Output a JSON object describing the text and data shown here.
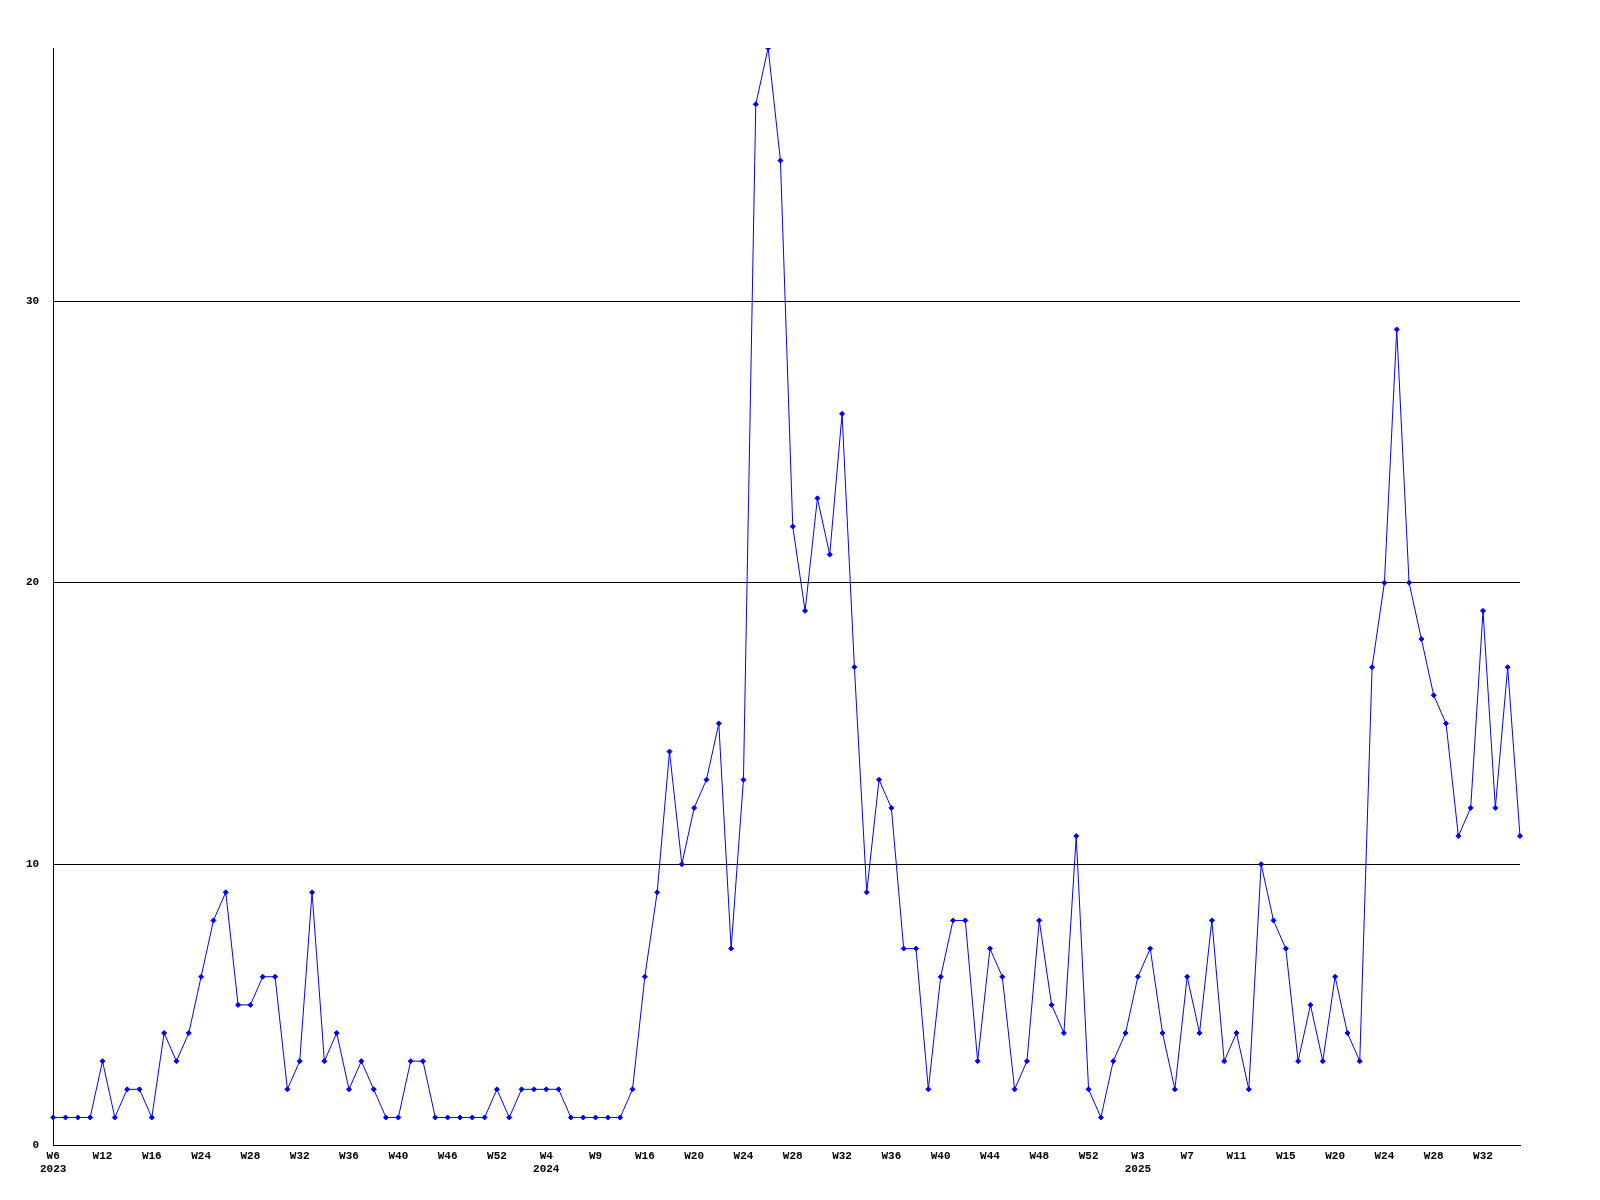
{
  "chart_data": {
    "type": "line",
    "categories": [
      "W6\n2023",
      null,
      null,
      null,
      "W12",
      null,
      null,
      null,
      "W16",
      null,
      null,
      null,
      "W24",
      null,
      null,
      null,
      "W28",
      null,
      null,
      null,
      "W32",
      null,
      null,
      null,
      "W36",
      null,
      null,
      null,
      "W40",
      null,
      null,
      null,
      "W46",
      null,
      null,
      null,
      "W52",
      null,
      null,
      null,
      "W4\n2024",
      null,
      null,
      null,
      "W9",
      null,
      null,
      null,
      "W16",
      null,
      null,
      null,
      "W20",
      null,
      null,
      null,
      "W24",
      null,
      null,
      null,
      "W28",
      null,
      null,
      null,
      "W32",
      null,
      null,
      null,
      "W36",
      null,
      null,
      null,
      "W40",
      null,
      null,
      null,
      "W44",
      null,
      null,
      null,
      "W48",
      null,
      null,
      null,
      "W52",
      null,
      null,
      null,
      "W3\n2025",
      null,
      null,
      null,
      "W7",
      null,
      null,
      null,
      "W11",
      null,
      null,
      null,
      "W15",
      null,
      null,
      null,
      "W20",
      null,
      null,
      null,
      "W24",
      null,
      null,
      null,
      "W28",
      null,
      null,
      null,
      "W32",
      null,
      null,
      null
    ],
    "series": [
      {
        "color": "#0000ff",
        "values": [
          1,
          1,
          1,
          1,
          3,
          1,
          2,
          2,
          1,
          4,
          3,
          4,
          6,
          8,
          9,
          5,
          5,
          6,
          6,
          2,
          3,
          9,
          3,
          4,
          2,
          3,
          2,
          1,
          1,
          3,
          3,
          1,
          1,
          1,
          1,
          1,
          2,
          1,
          2,
          2,
          2,
          2,
          1,
          1,
          1,
          1,
          1,
          2,
          6,
          9,
          14,
          10,
          12,
          13,
          15,
          7,
          13,
          37,
          39,
          35,
          22,
          19,
          23,
          21,
          26,
          17,
          9,
          13,
          12,
          7,
          7,
          2,
          6,
          8,
          8,
          3,
          7,
          6,
          2,
          3,
          8,
          5,
          4,
          11,
          2,
          1,
          3,
          4,
          6,
          7,
          4,
          2,
          6,
          4,
          8,
          3,
          4,
          2,
          10,
          8,
          7,
          3,
          5,
          3,
          6,
          4,
          3,
          17,
          20,
          29,
          20,
          18,
          16,
          15,
          11,
          12,
          19,
          12,
          17,
          11
        ]
      }
    ],
    "ylim": [
      0,
      39
    ],
    "yticks": [
      0,
      10,
      20,
      30
    ],
    "grid": "y",
    "legend": false,
    "marker": "diamond",
    "line_style": "solid"
  }
}
